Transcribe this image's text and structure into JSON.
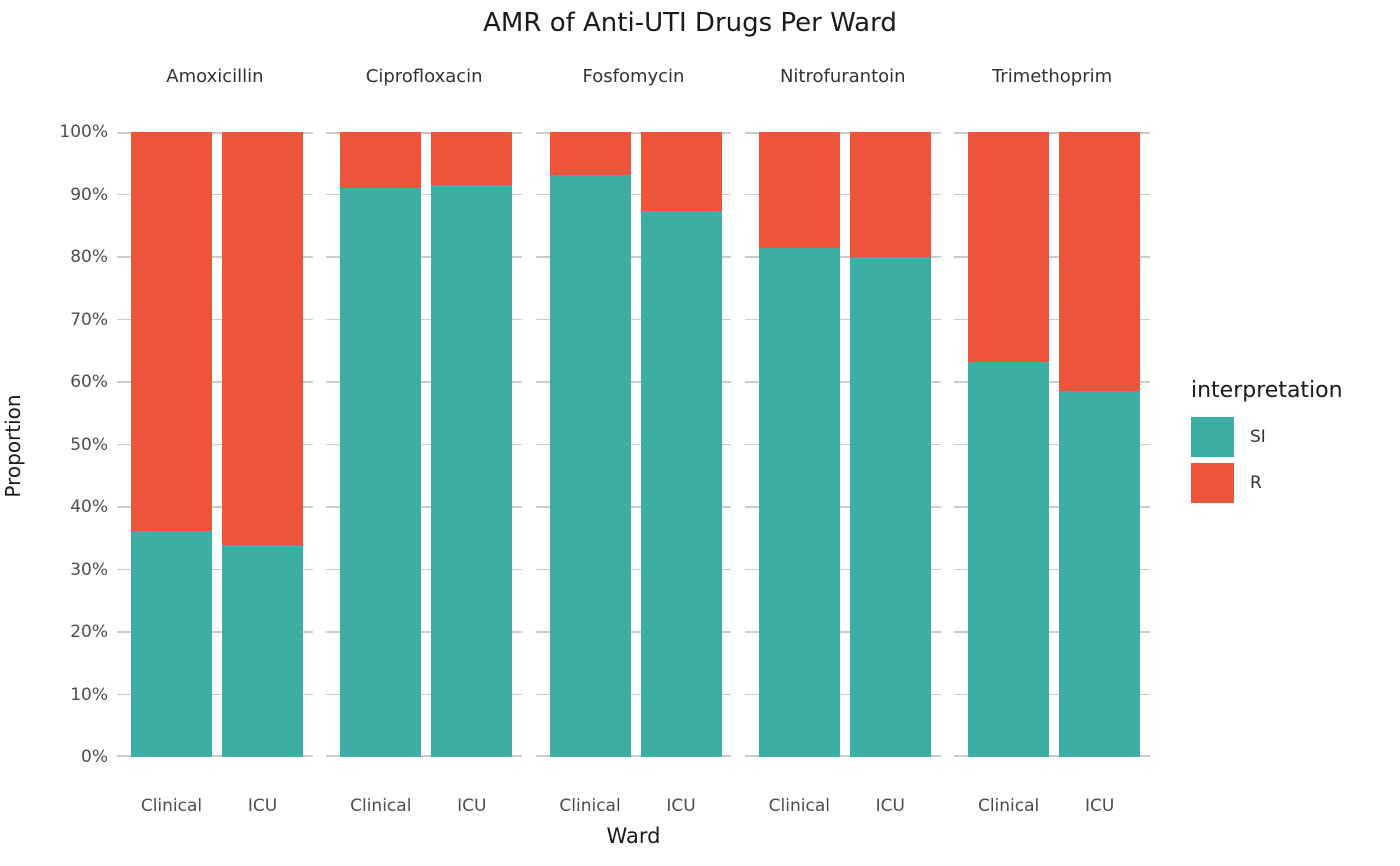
{
  "title": "AMR of Anti-UTI Drugs Per Ward",
  "axes": {
    "x_title": "Ward",
    "y_title": "Proportion",
    "y_ticks": [
      "0%",
      "10%",
      "20%",
      "30%",
      "40%",
      "50%",
      "60%",
      "70%",
      "80%",
      "90%",
      "100%"
    ]
  },
  "legend": {
    "title": "interpretation",
    "entries": [
      {
        "label": "SI",
        "color": "#3CAEA3"
      },
      {
        "label": "R",
        "color": "#ED553B"
      }
    ]
  },
  "chart_data": {
    "type": "bar",
    "variant": "100-percent-stacked, faceted by antibiotic",
    "title": "AMR of Anti-UTI Drugs Per Ward",
    "xlabel": "Ward",
    "ylabel": "Proportion",
    "ylim": [
      0,
      100
    ],
    "y_tick_step_pct": 10,
    "grid": true,
    "legend_title": "interpretation",
    "legend_position": "right",
    "series_names": [
      "SI",
      "R"
    ],
    "series_colors": {
      "SI": "#3CAEA3",
      "R": "#ED553B"
    },
    "categories": [
      "Clinical",
      "ICU"
    ],
    "facets": [
      {
        "label": "Amoxicillin",
        "bars": [
          {
            "category": "Clinical",
            "SI": 36.2,
            "R": 63.8
          },
          {
            "category": "ICU",
            "SI": 33.9,
            "R": 66.1
          }
        ]
      },
      {
        "label": "Ciprofloxacin",
        "bars": [
          {
            "category": "Clinical",
            "SI": 91.0,
            "R": 9.0
          },
          {
            "category": "ICU",
            "SI": 91.6,
            "R": 8.4
          }
        ]
      },
      {
        "label": "Fosfomycin",
        "bars": [
          {
            "category": "Clinical",
            "SI": 93.2,
            "R": 6.8
          },
          {
            "category": "ICU",
            "SI": 87.4,
            "R": 12.6
          }
        ]
      },
      {
        "label": "Nitrofurantoin",
        "bars": [
          {
            "category": "Clinical",
            "SI": 81.4,
            "R": 18.6
          },
          {
            "category": "ICU",
            "SI": 80.0,
            "R": 20.0
          }
        ]
      },
      {
        "label": "Trimethoprim",
        "bars": [
          {
            "category": "Clinical",
            "SI": 63.2,
            "R": 36.8
          },
          {
            "category": "ICU",
            "SI": 58.6,
            "R": 41.4
          }
        ]
      }
    ]
  }
}
